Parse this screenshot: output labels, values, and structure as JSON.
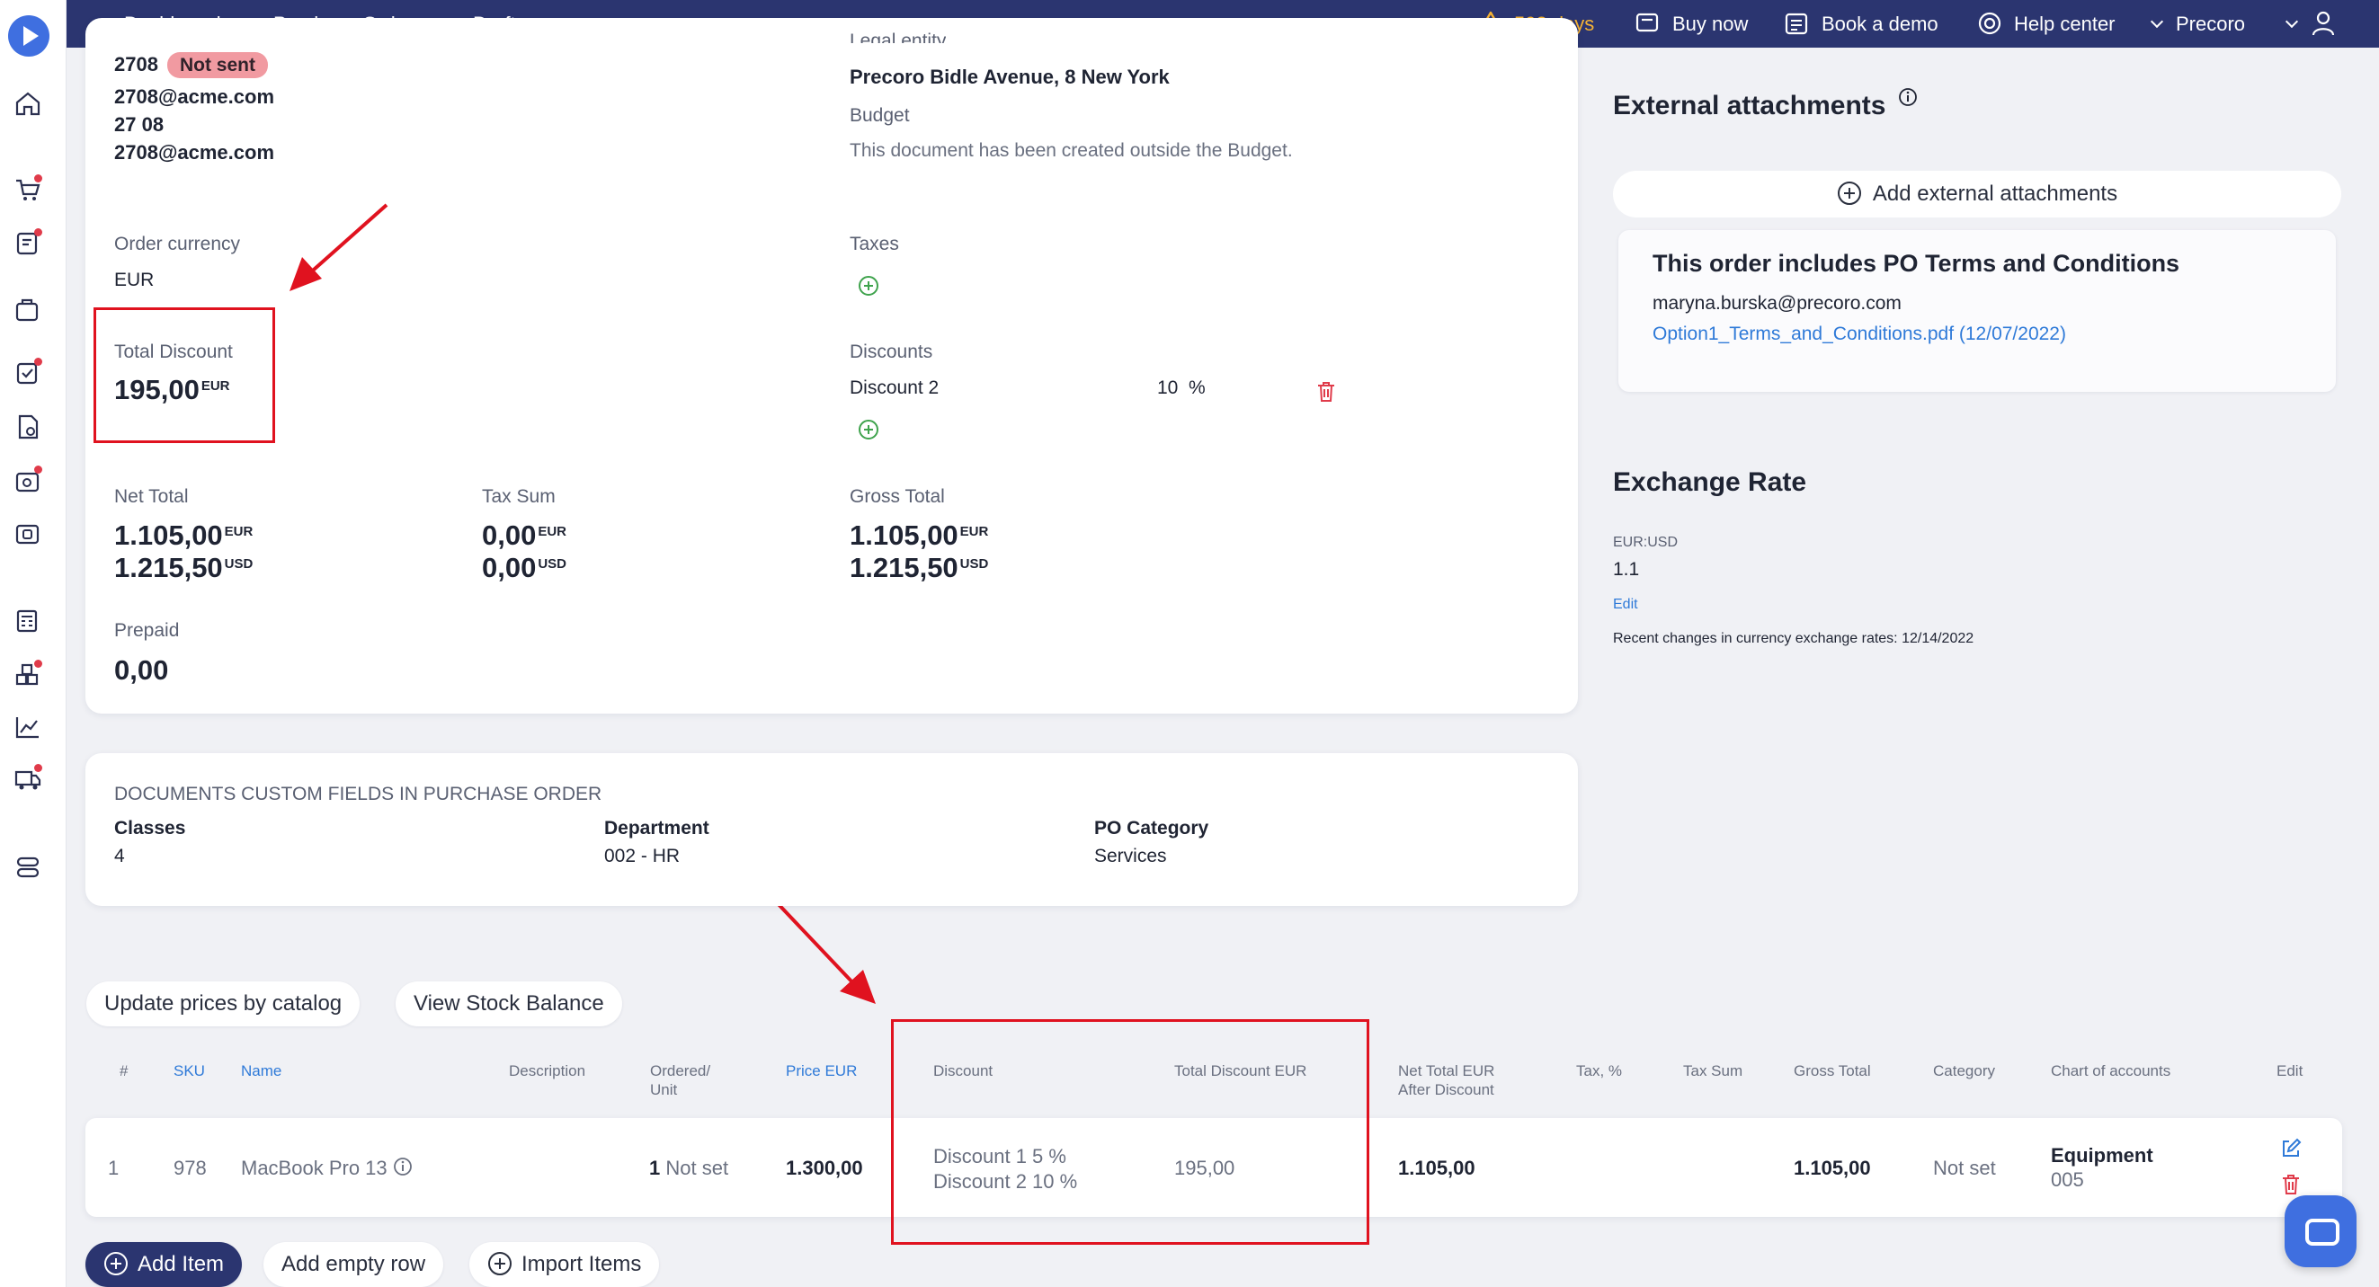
{
  "topbar": {
    "breadcrumb": [
      "Dashboard",
      "Purchase Orders",
      "Draft"
    ],
    "trial": "593 days",
    "buy_now": "Buy now",
    "book_demo": "Book a demo",
    "help_center": "Help center",
    "company": "Precoro"
  },
  "summary": {
    "contact_id": "2708",
    "status_badge": "Not sent",
    "email_1": "2708@acme.com",
    "phone": "27 08",
    "email_2": "2708@acme.com",
    "legal_entity_label": "Legal entity",
    "legal_entity": "Precoro Bidle Avenue, 8 New York",
    "budget_label": "Budget",
    "budget_value": "This document has been created outside the Budget.",
    "order_currency_label": "Order currency",
    "order_currency": "EUR",
    "taxes_label": "Taxes",
    "total_discount_label": "Total Discount",
    "total_discount": "195,00",
    "total_discount_cur": "EUR",
    "discounts_label": "Discounts",
    "discount_name": "Discount 2",
    "discount_value": "10",
    "discount_unit": "%",
    "net_total_label": "Net Total",
    "net_total_eur": "1.105,00",
    "net_total_usd": "1.215,50",
    "tax_sum_label": "Tax Sum",
    "tax_sum_eur": "0,00",
    "tax_sum_usd": "0,00",
    "gross_total_label": "Gross Total",
    "gross_total_eur": "1.105,00",
    "gross_total_usd": "1.215,50",
    "prepaid_label": "Prepaid",
    "prepaid": "0,00",
    "cur_eur": "EUR",
    "cur_usd": "USD"
  },
  "custom_fields": {
    "title": "DOCUMENTS CUSTOM FIELDS IN PURCHASE ORDER",
    "fields": [
      {
        "label": "Classes",
        "value": "4"
      },
      {
        "label": "Department",
        "value": "002 - HR"
      },
      {
        "label": "PO Category",
        "value": "Services"
      }
    ]
  },
  "attachments": {
    "title": "External attachments",
    "add_label": "Add external attachments",
    "terms_title": "This order includes PO Terms and Conditions",
    "terms_email": "maryna.burska@precoro.com",
    "terms_file": "Option1_Terms_and_Conditions.pdf (12/07/2022)"
  },
  "exchange": {
    "title": "Exchange Rate",
    "pair": "EUR:USD",
    "rate": "1.1",
    "edit": "Edit",
    "recent": "Recent changes in currency exchange rates: 12/14/2022"
  },
  "table": {
    "update_prices": "Update prices by catalog",
    "view_stock": "View Stock Balance",
    "headers": {
      "num": "#",
      "sku": "SKU",
      "name": "Name",
      "description": "Description",
      "ordered_1": "Ordered/",
      "ordered_2": "Unit",
      "price": "Price EUR",
      "discount": "Discount",
      "total_discount": "Total Discount EUR",
      "net_1": "Net Total EUR",
      "net_2": "After Discount",
      "tax": "Tax, %",
      "tax_sum": "Tax Sum",
      "gross": "Gross Total",
      "category": "Category",
      "chart": "Chart of accounts",
      "edit": "Edit"
    },
    "row": {
      "num": "1",
      "sku": "978",
      "name": "MacBook Pro 13",
      "ordered_qty": "1",
      "ordered_unit": "Not set",
      "price": "1.300,00",
      "discount_1": "Discount 1 5 %",
      "discount_2": "Discount 2 10 %",
      "total_discount": "195,00",
      "net": "1.105,00",
      "gross": "1.105,00",
      "category": "Not set",
      "chart_name": "Equipment",
      "chart_code": "005"
    },
    "add_item": "Add Item",
    "add_empty": "Add empty row",
    "import_items": "Import Items"
  }
}
